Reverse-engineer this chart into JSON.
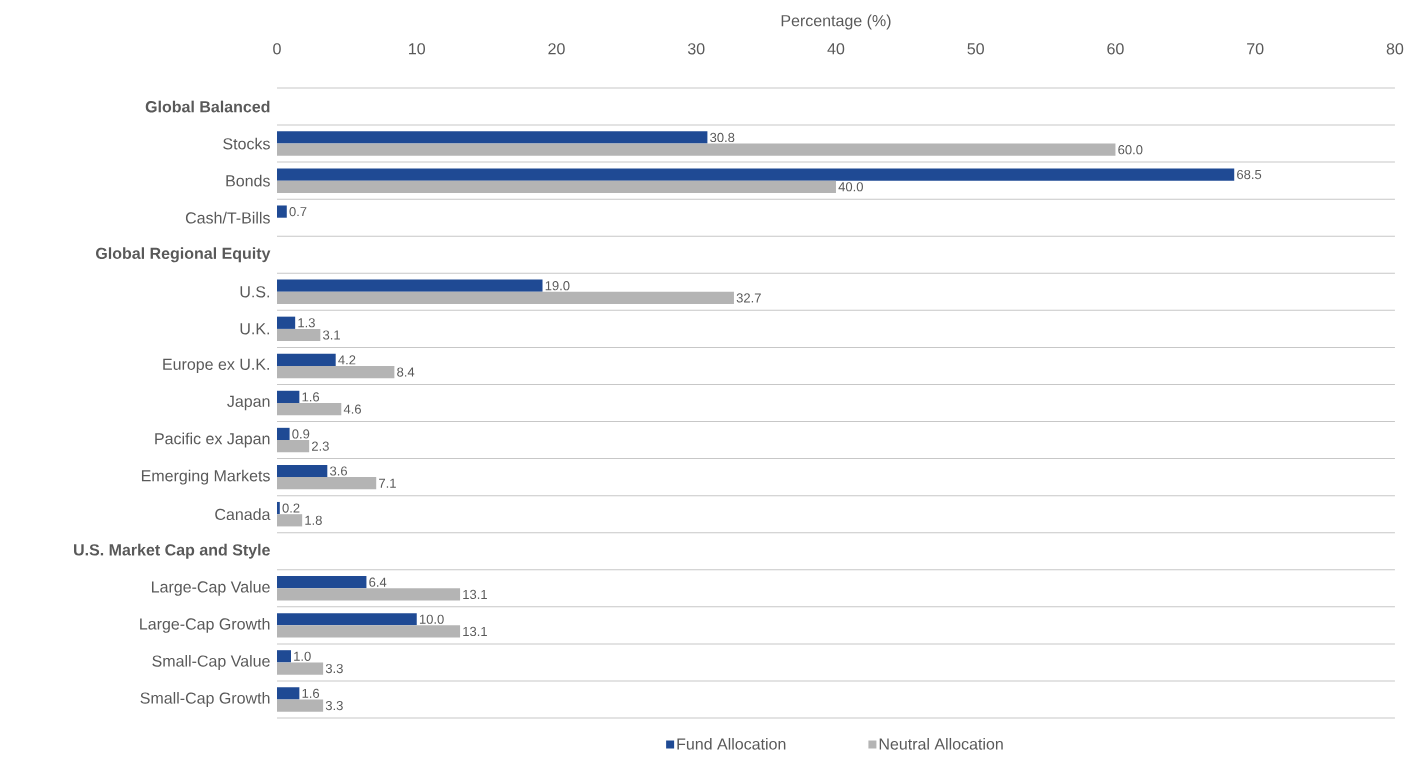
{
  "chart_data": {
    "type": "bar",
    "orientation": "horizontal",
    "xlabel": "Percentage (%)",
    "categories": [
      "Global Balanced",
      "Stocks",
      "Bonds",
      "Cash/T-Bills",
      "Global Regional Equity",
      "U.S.",
      "U.K.",
      "Europe ex U.K.",
      "Japan",
      "Pacific ex Japan",
      "Emerging Markets",
      "Canada",
      "U.S. Market Cap and Style",
      "Large-Cap Value",
      "Large-Cap Growth",
      "Small-Cap Value",
      "Small-Cap Growth"
    ],
    "series": [
      {
        "name": "Fund Allocation",
        "color": "#1f4a94",
        "values": [
          null,
          30.8,
          68.5,
          0.7,
          null,
          19.0,
          1.3,
          4.2,
          1.6,
          0.9,
          3.6,
          0.2,
          null,
          6.4,
          10.0,
          1.0,
          1.6
        ],
        "value_labels": [
          null,
          "30.8",
          "68.5",
          "0.7",
          null,
          "19.0",
          "1.3",
          "4.2",
          "1.6",
          "0.9",
          "3.6",
          "0.2",
          null,
          "6.4",
          "10.0",
          "1.0",
          "1.6"
        ]
      },
      {
        "name": "Neutral Allocation",
        "color": "#b4b4b4",
        "values": [
          null,
          60.0,
          40.0,
          null,
          null,
          32.7,
          3.1,
          8.4,
          4.6,
          2.3,
          7.1,
          1.8,
          null,
          13.1,
          13.1,
          3.3,
          3.3
        ],
        "value_labels": [
          null,
          "60.0",
          "40.0",
          null,
          null,
          "32.7",
          "3.1",
          "8.4",
          "4.6",
          "2.3",
          "7.1",
          "1.8",
          null,
          "13.1",
          "13.1",
          "3.3",
          "3.3"
        ]
      }
    ],
    "xlim": [
      0,
      80
    ],
    "xticks": [
      0,
      10,
      20,
      30,
      40,
      50,
      60,
      70,
      80
    ],
    "grid": "y",
    "legend": "bottom"
  }
}
